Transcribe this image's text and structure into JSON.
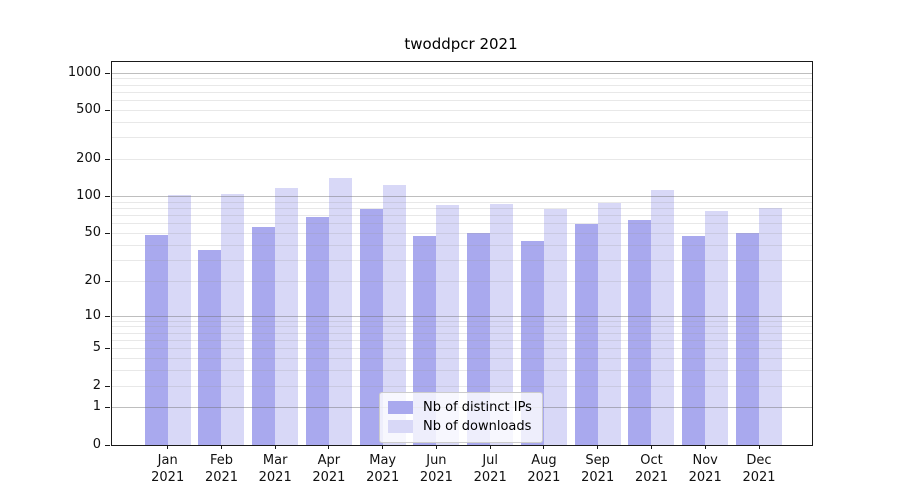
{
  "chart_data": {
    "type": "bar",
    "title": "twoddpcr 2021",
    "categories": [
      "Jan 2021",
      "Feb 2021",
      "Mar 2021",
      "Apr 2021",
      "May 2021",
      "Jun 2021",
      "Jul 2021",
      "Aug 2021",
      "Sep 2021",
      "Oct 2021",
      "Nov 2021",
      "Dec 2021"
    ],
    "series": [
      {
        "name": "Nb of distinct IPs",
        "color": "#a9a9ee",
        "values": [
          48,
          36,
          56,
          68,
          79,
          47,
          50,
          43,
          59,
          64,
          47,
          50
        ]
      },
      {
        "name": "Nb of downloads",
        "color": "#d8d8f7",
        "values": [
          102,
          105,
          117,
          141,
          124,
          85,
          87,
          78,
          88,
          112,
          75,
          80
        ]
      }
    ],
    "xlabel": "",
    "ylabel": "",
    "y_scale": "log1p",
    "y_ticks": [
      0,
      1,
      2,
      5,
      10,
      20,
      50,
      100,
      200,
      500,
      1000
    ],
    "ylim": [
      0,
      1230
    ],
    "grid": "horizontal",
    "grid_major_at": [
      1,
      10,
      100,
      1000
    ],
    "legend_position": "inside-bottom-center",
    "frame_color": "#1a1a1a",
    "major_grid_color": "#c3c3c3",
    "minor_grid_color": "#e7e7e7"
  }
}
